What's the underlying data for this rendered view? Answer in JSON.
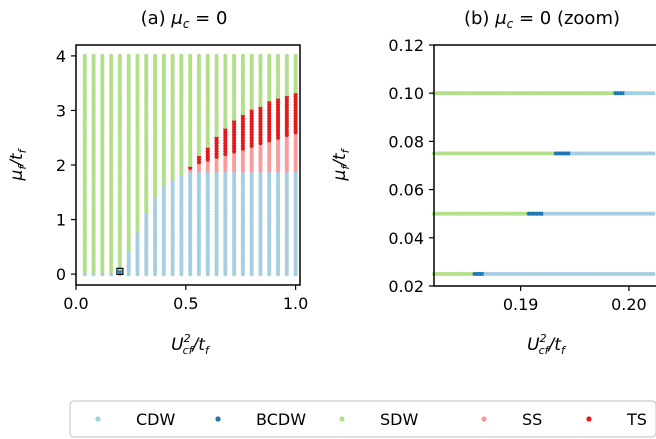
{
  "colors": {
    "CDW": "#a6cee3",
    "BCDW": "#1f78b4",
    "SDW": "#b2df8a",
    "SS": "#fb9a99",
    "TS": "#e31a1c"
  },
  "legend": {
    "placement": "bottom",
    "items": [
      {
        "key": "CDW",
        "label": "CDW"
      },
      {
        "key": "BCDW",
        "label": "BCDW"
      },
      {
        "key": "SDW",
        "label": "SDW"
      },
      {
        "key": "SS",
        "label": "SS"
      },
      {
        "key": "TS",
        "label": "TS"
      }
    ]
  },
  "chart_data": [
    {
      "type": "scatter",
      "title": "(a) μ_c = 0",
      "title_parts": [
        "(a) ",
        "μ",
        "c",
        " = 0"
      ],
      "xlabel_parts": [
        "U",
        "cf",
        "2",
        "/t",
        "f"
      ],
      "ylabel_parts": [
        "μ",
        "f",
        "/t",
        "f"
      ],
      "xlim": [
        0.0,
        1.02
      ],
      "ylim": [
        -0.2,
        4.2
      ],
      "xticks": [
        0.0,
        0.5,
        1.0
      ],
      "xtick_labels": [
        "0.0",
        "0.5",
        "1.0"
      ],
      "yticks": [
        0,
        1,
        2,
        3,
        4
      ],
      "ytick_labels": [
        "0",
        "1",
        "2",
        "3",
        "4"
      ],
      "grid_x": [
        0.04,
        1.0,
        0.04
      ],
      "grid_y": [
        0,
        4.0,
        0.05
      ],
      "phase_rule": {
        "cdw_max_y": [
          [
            0.04,
            0
          ],
          [
            0.2,
            0.05
          ],
          [
            0.25,
            0.5
          ],
          [
            0.3,
            0.95
          ],
          [
            0.35,
            1.35
          ],
          [
            0.4,
            1.6
          ],
          [
            0.45,
            1.75
          ],
          [
            0.5,
            1.85
          ],
          [
            1.0,
            1.85
          ]
        ],
        "ss_max_y": [
          [
            0.5,
            1.85
          ],
          [
            0.56,
            2.0
          ],
          [
            0.7,
            2.2
          ],
          [
            0.84,
            2.35
          ],
          [
            1.0,
            2.55
          ]
        ],
        "ts_max_y": [
          [
            0.5,
            1.9
          ],
          [
            0.56,
            2.15
          ],
          [
            0.6,
            2.3
          ],
          [
            0.64,
            2.5
          ],
          [
            0.72,
            2.8
          ],
          [
            0.8,
            3.0
          ],
          [
            0.88,
            3.15
          ],
          [
            1.0,
            3.3
          ]
        ],
        "bcdw_x": 0.2,
        "bcdw_y": 0.05
      },
      "annotation": {
        "type": "square",
        "x": 0.2,
        "y": 0.05
      }
    },
    {
      "type": "scatter",
      "title": "(b) μ_c = 0 (zoom)",
      "title_parts": [
        "(b) ",
        "μ",
        "c",
        " = 0 (zoom)"
      ],
      "xlabel_parts": [
        "U",
        "cf",
        "2",
        "/t",
        "f"
      ],
      "ylabel_parts": [
        "μ",
        "f",
        "/t",
        "f"
      ],
      "xlim": [
        0.182,
        0.2025
      ],
      "ylim": [
        0.02,
        0.12
      ],
      "xticks": [
        0.19,
        0.2
      ],
      "xtick_labels": [
        "0.19",
        "0.20"
      ],
      "yticks": [
        0.02,
        0.04,
        0.06,
        0.08,
        0.1,
        0.12
      ],
      "ytick_labels": [
        "0.02",
        "0.04",
        "0.06",
        "0.08",
        "0.10",
        "0.12"
      ],
      "rows": [
        {
          "y": 0.025,
          "sdw_to": 0.1855,
          "bcdw_to": 0.1865
        },
        {
          "y": 0.05,
          "sdw_to": 0.1905,
          "bcdw_to": 0.192
        },
        {
          "y": 0.075,
          "sdw_to": 0.193,
          "bcdw_to": 0.1945
        },
        {
          "y": 0.1,
          "sdw_to": 0.1985,
          "bcdw_to": 0.1995
        }
      ],
      "x_step": 0.00025
    }
  ]
}
